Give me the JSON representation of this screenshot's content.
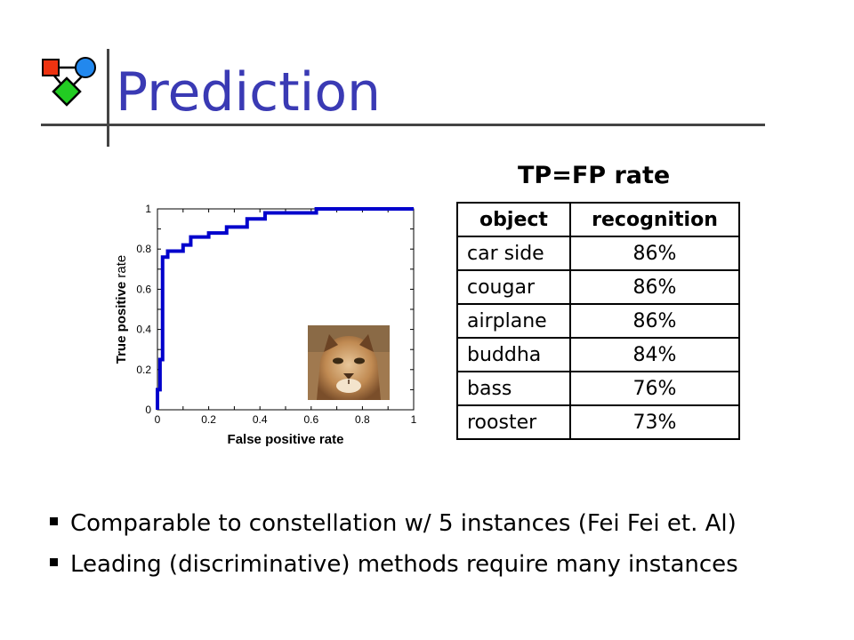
{
  "slide": {
    "title": "Prediction"
  },
  "chart_data": {
    "type": "line",
    "xlabel": "False positive rate",
    "ylabel_bold": "True positive",
    "ylabel_normal": " rate",
    "xlim": [
      0,
      1
    ],
    "ylim": [
      0,
      1
    ],
    "xticks": [
      "0",
      "0.2",
      "0.4",
      "0.6",
      "0.8",
      "1"
    ],
    "yticks": [
      "0",
      "0.2",
      "0.4",
      "0.6",
      "0.8",
      "1"
    ],
    "grid": false,
    "series": [
      {
        "color": "#0000cc",
        "x": [
          0,
          0,
          0.01,
          0.01,
          0.02,
          0.02,
          0.04,
          0.04,
          0.1,
          0.1,
          0.13,
          0.13,
          0.2,
          0.2,
          0.27,
          0.27,
          0.35,
          0.35,
          0.42,
          0.42,
          0.62,
          0.62,
          1.0
        ],
        "y": [
          0,
          0.1,
          0.1,
          0.25,
          0.25,
          0.76,
          0.76,
          0.79,
          0.79,
          0.82,
          0.82,
          0.86,
          0.86,
          0.88,
          0.88,
          0.91,
          0.91,
          0.95,
          0.95,
          0.98,
          0.98,
          1.0,
          1.0
        ]
      }
    ]
  },
  "table": {
    "heading": "TP=FP rate",
    "columns": [
      "object",
      "recognition"
    ],
    "rows": [
      {
        "object": "car side",
        "recognition": "86%"
      },
      {
        "object": "cougar",
        "recognition": "86%"
      },
      {
        "object": "airplane",
        "recognition": "86%"
      },
      {
        "object": "buddha",
        "recognition": "84%"
      },
      {
        "object": "bass",
        "recognition": "76%"
      },
      {
        "object": "rooster",
        "recognition": "73%"
      }
    ]
  },
  "bullets": [
    "Comparable to constellation w/ 5 instances (Fei Fei et. Al)",
    "Leading (discriminative) methods require many instances"
  ],
  "colors": {
    "title": "#3a3ab4",
    "roc_line": "#0000cc"
  }
}
